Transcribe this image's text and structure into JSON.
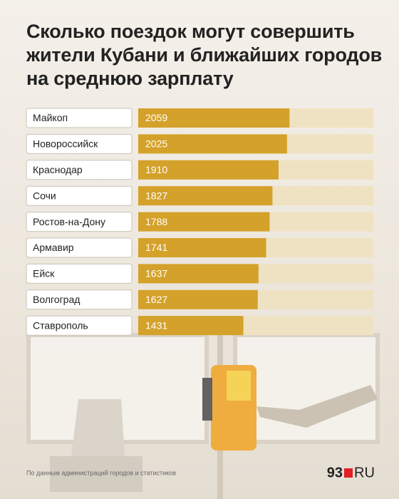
{
  "chart_data": {
    "type": "bar",
    "title": "Сколько поездок могут совершить жители Кубани и ближайших городов на среднюю зарплату",
    "categories": [
      "Майкоп",
      "Новороссийск",
      "Краснодар",
      "Сочи",
      "Ростов-на-Дону",
      "Армавир",
      "Ейск",
      "Волгоград",
      "Ставрополь"
    ],
    "values": [
      2059,
      2025,
      1910,
      1827,
      1788,
      1741,
      1637,
      1627,
      1431
    ],
    "color": "#d4a12a",
    "xlim": [
      0,
      3200
    ],
    "source": "По данным администраций городов и статистиков",
    "logo_number": "93",
    "logo_text": "RU"
  }
}
